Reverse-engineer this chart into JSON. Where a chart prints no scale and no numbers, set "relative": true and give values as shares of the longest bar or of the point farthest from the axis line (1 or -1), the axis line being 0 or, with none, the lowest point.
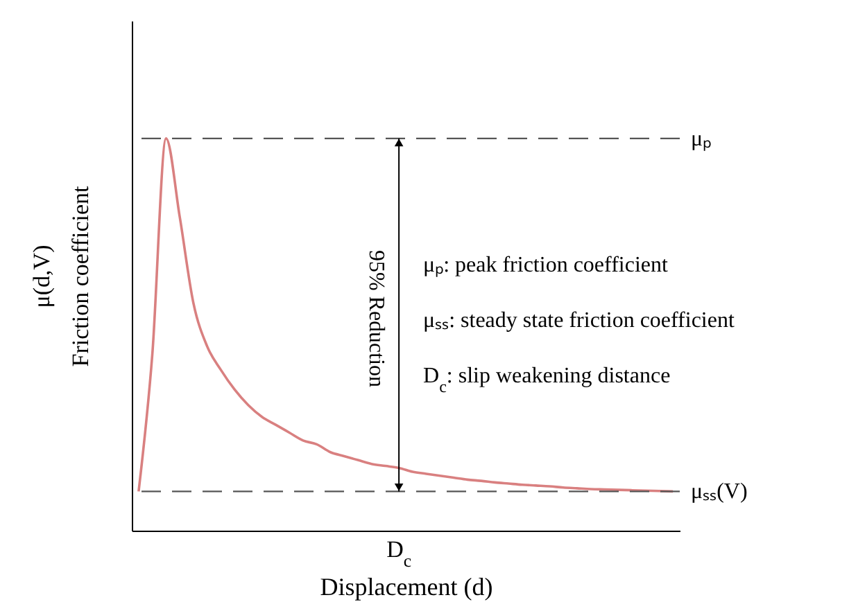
{
  "chart_data": {
    "type": "line",
    "relative": true,
    "xlabel": "Displacement (d)",
    "ylabel": "Friction coefficient",
    "categories": [
      null,
      null,
      null,
      null,
      null,
      null,
      null,
      null,
      null,
      null,
      null,
      null,
      null,
      null,
      null,
      null,
      null,
      null,
      null,
      null,
      null,
      null,
      null,
      null,
      null,
      null,
      null,
      null,
      null,
      null,
      null,
      null,
      null,
      null,
      null,
      null,
      null,
      null,
      null,
      null
    ],
    "series": [
      {
        "color": "#d98080",
        "values": [
          0.1,
          0.45,
          1.0,
          0.8,
          0.58,
          0.47,
          0.41,
          0.36,
          0.32,
          0.29,
          0.27,
          0.25,
          0.23,
          0.22,
          0.2,
          0.19,
          0.18,
          0.17,
          0.165,
          0.16,
          0.15,
          0.145,
          0.14,
          0.135,
          0.13,
          0.127,
          0.123,
          0.12,
          0.117,
          0.115,
          0.113,
          0.11,
          0.108,
          0.106,
          0.105,
          0.104,
          0.103,
          0.102,
          0.101,
          0.1
        ]
      }
    ],
    "ref_lines": [
      {
        "axis": "y",
        "value": 1,
        "label": "μₚ",
        "color": "#555555",
        "line_style": "dashed"
      },
      {
        "axis": "y",
        "value": 0.1,
        "label": "μₛₛ(V)",
        "color": "#555555",
        "line_style": "dashed"
      }
    ],
    "annotations": [
      "μ(d,V)",
      "95% Reduction",
      "μₚ: peak friction coefficient",
      "μₛₛ: steady state friction coefficient",
      "D$_{c}$: slip weakening distance",
      "D$_{c}$"
    ],
    "grid": false,
    "marker": "none",
    "line_style": "solid"
  }
}
